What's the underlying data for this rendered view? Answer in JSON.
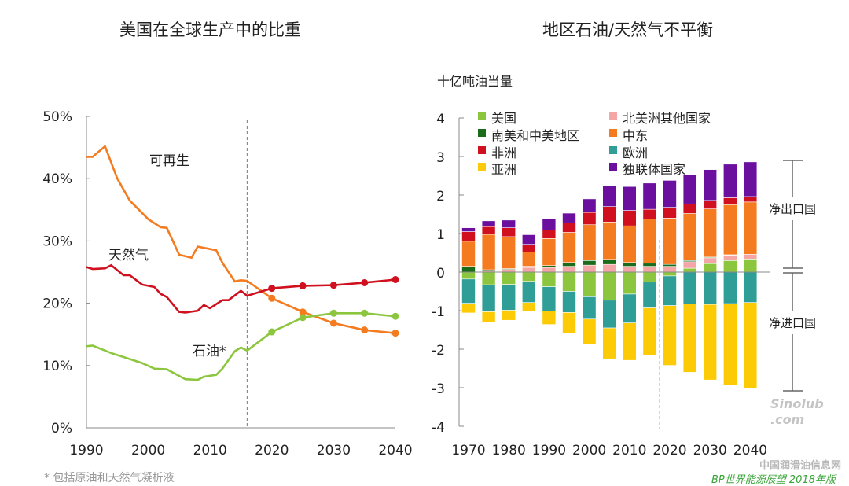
{
  "chart_data": [
    {
      "type": "line",
      "title": "美国在全球生产中的比重",
      "xlabel": "",
      "ylabel": "",
      "xlim": [
        1990,
        2040
      ],
      "ylim": [
        0,
        50
      ],
      "x_ticks": [
        "1990",
        "2000",
        "2010",
        "2020",
        "2030",
        "2040"
      ],
      "y_ticks": [
        "0%",
        "10%",
        "20%",
        "30%",
        "40%",
        "50%"
      ],
      "grid": false,
      "projection_divider_year": 2016,
      "footnote": "* 包括原油和天然气凝析液",
      "series": [
        {
          "name": "可再生",
          "color": "#f47b20",
          "x": [
            1990,
            1991,
            1993,
            1995,
            1997,
            2000,
            2002,
            2003,
            2005,
            2007,
            2008,
            2010,
            2011,
            2012,
            2014,
            2015,
            2016,
            2020,
            2025,
            2030,
            2035,
            2040
          ],
          "y": [
            43.5,
            43.5,
            45.2,
            40,
            36.5,
            33.5,
            32.2,
            32.1,
            27.8,
            27.3,
            29.1,
            28.7,
            28.5,
            26.5,
            23.5,
            23.7,
            23.6,
            20.8,
            18.6,
            16.8,
            15.7,
            15.2
          ],
          "markers_from": 2020
        },
        {
          "name": "天然气",
          "color": "#d0101e",
          "x": [
            1990,
            1991,
            1993,
            1994,
            1996,
            1997,
            1999,
            2001,
            2002,
            2003,
            2005,
            2006,
            2008,
            2009,
            2010,
            2012,
            2013,
            2015,
            2016,
            2020,
            2025,
            2030,
            2035,
            2040
          ],
          "y": [
            25.8,
            25.5,
            25.6,
            26.1,
            24.5,
            24.5,
            23,
            22.6,
            21.5,
            21,
            18.6,
            18.5,
            18.8,
            19.7,
            19.2,
            20.5,
            20.5,
            22,
            21.2,
            22.4,
            22.8,
            22.9,
            23.3,
            23.8
          ],
          "markers_from": 2020
        },
        {
          "name": "石油*",
          "color": "#8cc63f",
          "x": [
            1990,
            1991,
            1994,
            1999,
            2001,
            2003,
            2006,
            2008,
            2009,
            2011,
            2012,
            2014,
            2015,
            2016,
            2020,
            2025,
            2030,
            2035,
            2040
          ],
          "y": [
            13.1,
            13.2,
            12.0,
            10.4,
            9.5,
            9.4,
            7.8,
            7.7,
            8.2,
            8.5,
            9.5,
            12.3,
            12.9,
            12.4,
            15.4,
            17.7,
            18.4,
            18.4,
            17.9
          ],
          "markers_from": 2020
        }
      ]
    },
    {
      "type": "bar",
      "stacked": true,
      "title": "地区石油/天然气不平衡",
      "ylabel": "十亿吨油当量",
      "ylim": [
        -4,
        4
      ],
      "y_ticks": [
        "-4",
        "-3",
        "-2",
        "-1",
        "0",
        "1",
        "2",
        "3",
        "4"
      ],
      "x_ticks": [
        "1970",
        "1980",
        "1990",
        "2000",
        "2010",
        "2020",
        "2030",
        "2040"
      ],
      "categories": [
        1970,
        1975,
        1980,
        1985,
        1990,
        1995,
        2000,
        2005,
        2010,
        2015,
        2020,
        2025,
        2030,
        2035,
        2040
      ],
      "legend_placement": "top-left",
      "projection_divider_after": 2015,
      "bracket_labels": {
        "exporters": "净出口国",
        "importers": "净进口国"
      },
      "series": [
        {
          "name": "美国",
          "color": "#8cc63f",
          "values": [
            -0.18,
            -0.33,
            -0.32,
            -0.24,
            -0.38,
            -0.5,
            -0.64,
            -0.73,
            -0.57,
            -0.26,
            -0.1,
            0.1,
            0.22,
            0.3,
            0.34
          ]
        },
        {
          "name": "北美洲其他国家",
          "color": "#f4a6a6",
          "values": [
            0,
            0.03,
            0.07,
            0.12,
            0.12,
            0.15,
            0.18,
            0.2,
            0.15,
            0.15,
            0.15,
            0.17,
            0.15,
            0.14,
            0.12
          ]
        },
        {
          "name": "南美和中美地区",
          "color": "#1a6b1a",
          "values": [
            0.15,
            0.03,
            0.02,
            0.03,
            0.05,
            0.1,
            0.12,
            0.13,
            0.1,
            0.08,
            0.05,
            0.03,
            0.02,
            0.01,
            0
          ]
        },
        {
          "name": "中东",
          "color": "#f47b20",
          "values": [
            0.65,
            0.92,
            0.83,
            0.37,
            0.7,
            0.78,
            0.93,
            0.97,
            0.95,
            1.15,
            1.2,
            1.22,
            1.25,
            1.3,
            1.36
          ]
        },
        {
          "name": "非洲",
          "color": "#d0101e",
          "values": [
            0.25,
            0.2,
            0.23,
            0.2,
            0.22,
            0.25,
            0.32,
            0.4,
            0.4,
            0.25,
            0.28,
            0.25,
            0.22,
            0.18,
            0.14
          ]
        },
        {
          "name": "欧洲",
          "color": "#2e9e96",
          "values": [
            -0.63,
            -0.7,
            -0.67,
            -0.55,
            -0.63,
            -0.55,
            -0.58,
            -0.72,
            -0.75,
            -0.67,
            -0.77,
            -0.83,
            -0.84,
            -0.82,
            -0.79
          ]
        },
        {
          "name": "亚洲",
          "color": "#fccb06",
          "values": [
            -0.25,
            -0.27,
            -0.26,
            -0.22,
            -0.35,
            -0.53,
            -0.65,
            -0.8,
            -0.97,
            -1.23,
            -1.55,
            -1.77,
            -1.96,
            -2.12,
            -2.22
          ]
        },
        {
          "name": "独联体国家",
          "color": "#6a0f9e",
          "values": [
            0.1,
            0.15,
            0.2,
            0.25,
            0.3,
            0.25,
            0.35,
            0.55,
            0.62,
            0.68,
            0.7,
            0.75,
            0.8,
            0.87,
            0.9
          ]
        }
      ]
    }
  ],
  "watermark": {
    "logo": "Sinolub .com",
    "site": "中国润滑油信息网",
    "source": "BP世界能源展望 2018年版"
  }
}
